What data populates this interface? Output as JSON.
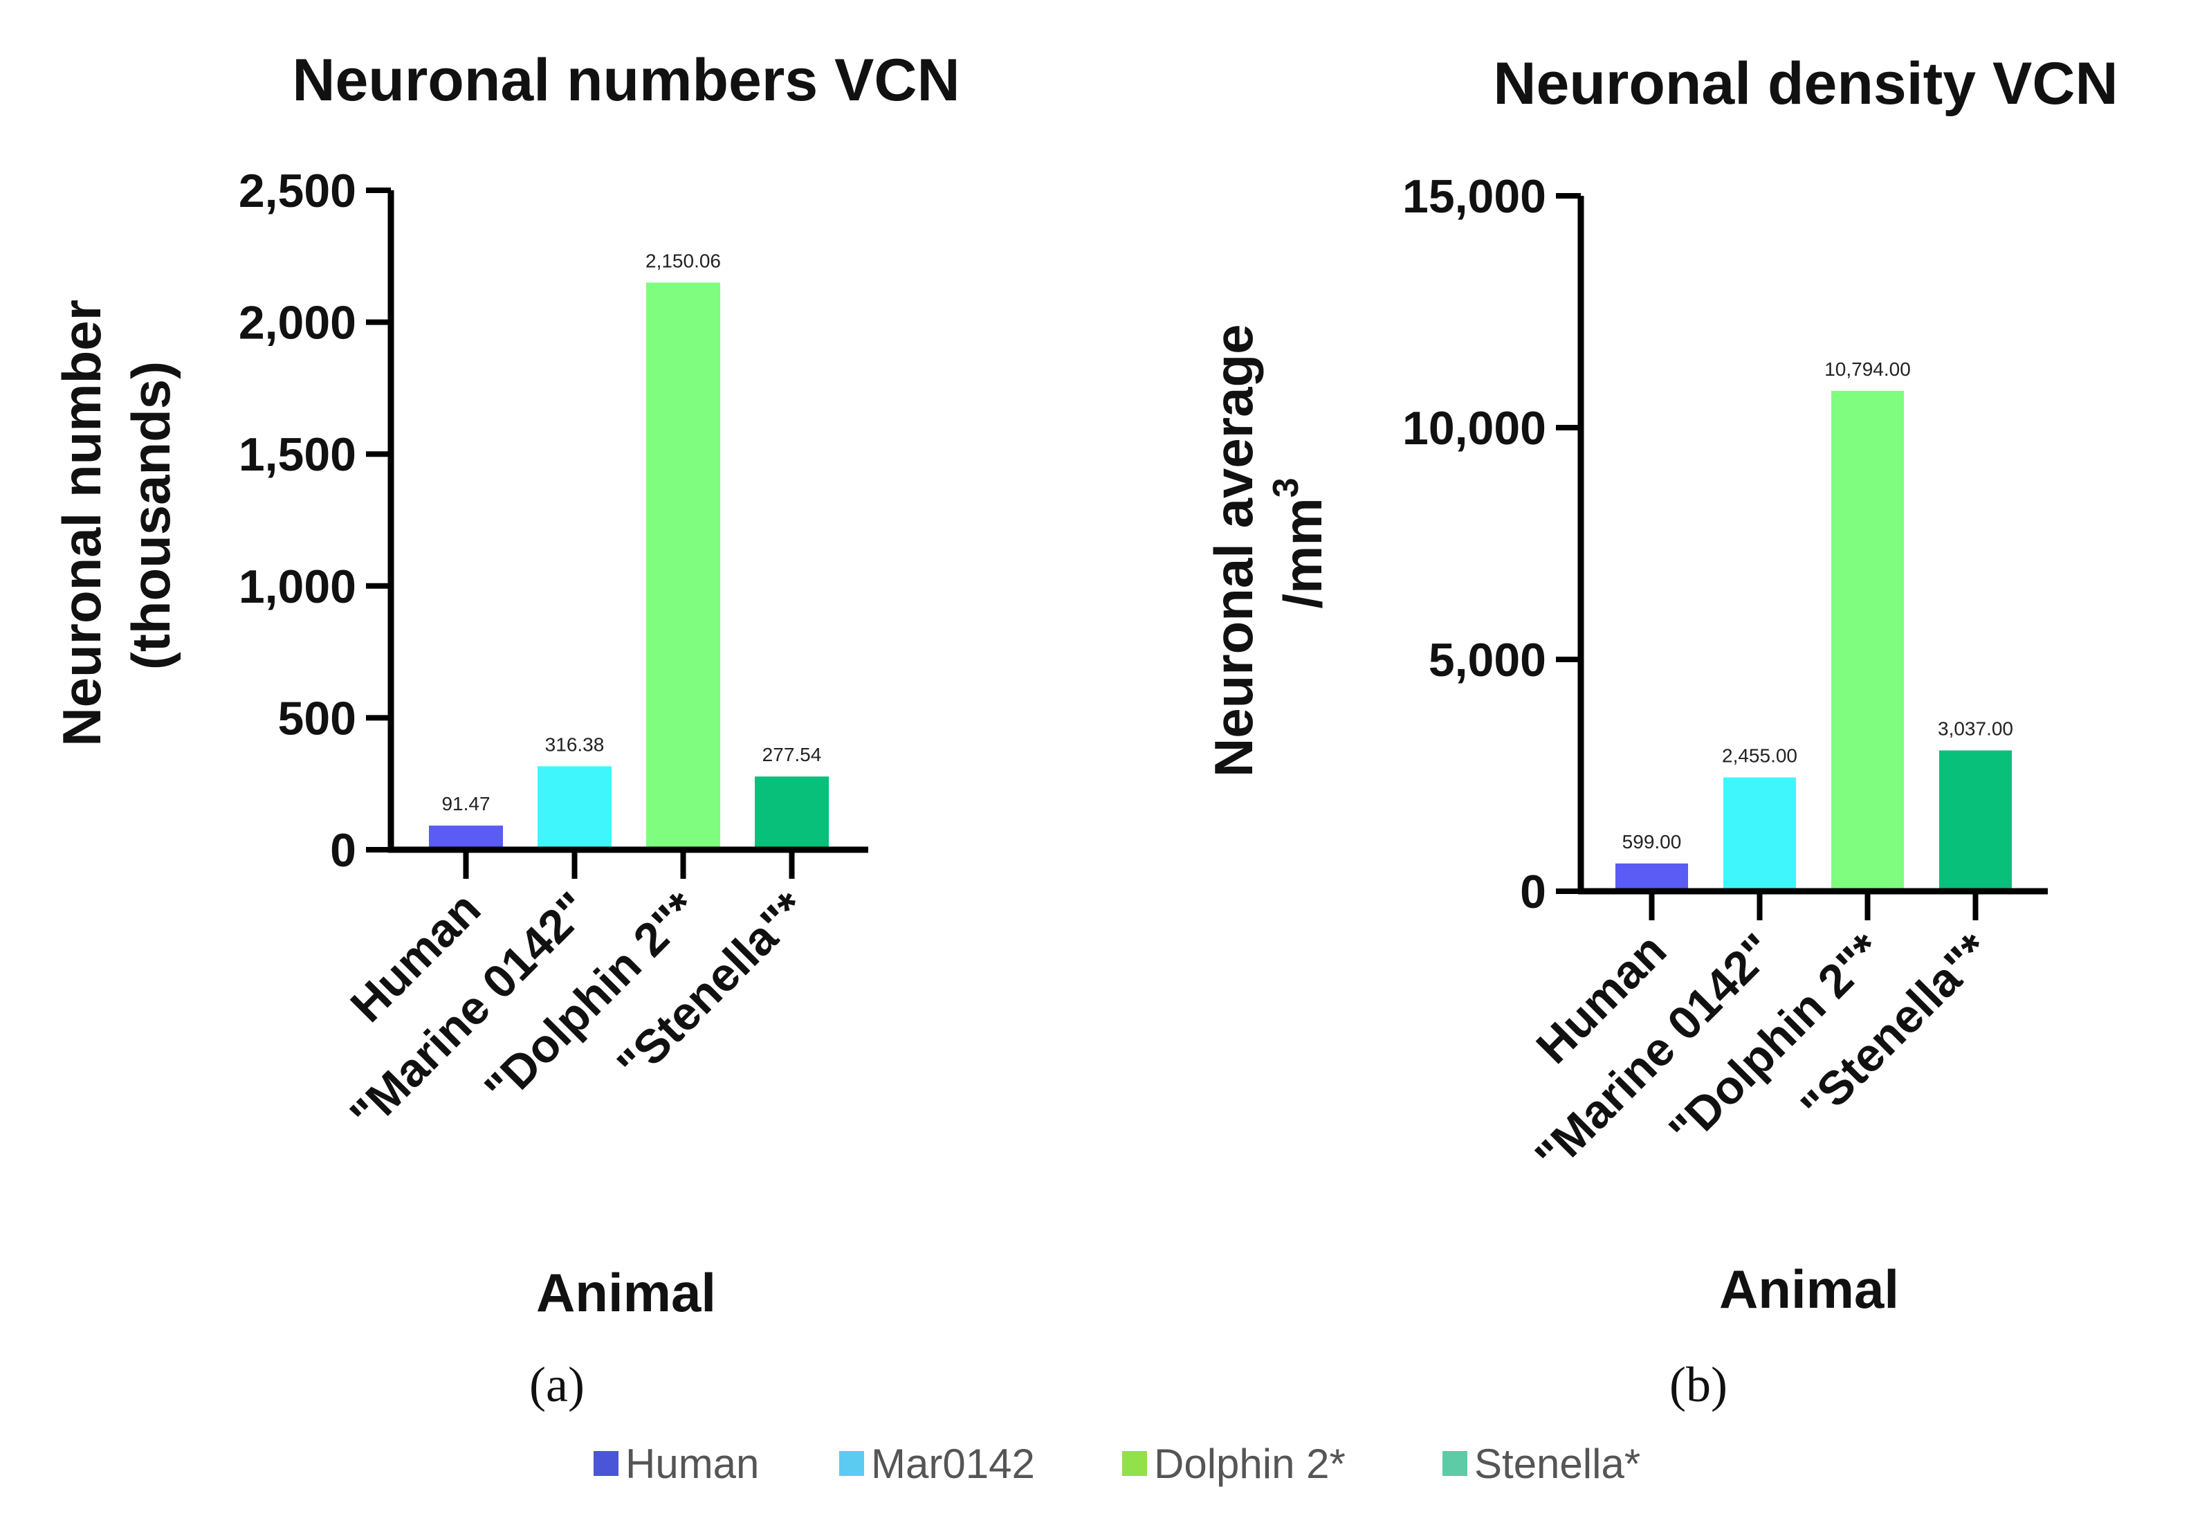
{
  "chart_data": [
    {
      "type": "bar",
      "title": "Neuronal numbers VCN",
      "ylabel_lines": [
        "Neuronal number",
        "(thousands)"
      ],
      "xlabel": "Animal",
      "panel_label": "(a)",
      "categories": [
        "Human",
        "\"Marine 0142\"",
        "\"Dolphin 2\"*",
        "\"Stenella\"*"
      ],
      "values": [
        91.47,
        316.38,
        2150.06,
        277.54
      ],
      "value_labels": [
        "91.47",
        "316.38",
        "2,150.06",
        "277.54"
      ],
      "ylim": [
        0,
        2500
      ],
      "yticks": [
        0,
        500,
        1000,
        1500,
        2000,
        2500
      ],
      "ytick_labels": [
        "0",
        "500",
        "1,000",
        "1,500",
        "2,000",
        "2,500"
      ],
      "colors": [
        "#5b5bf5",
        "#3ff6fd",
        "#7ffd7f",
        "#08c07a"
      ]
    },
    {
      "type": "bar",
      "title": "Neuronal density VCN",
      "ylabel_lines": [
        "Neuronal average",
        "/mm"
      ],
      "ylabel_superscript": "3",
      "xlabel": "Animal",
      "panel_label": "(b)",
      "categories": [
        "Human",
        "\"Marine 0142\"",
        "\"Dolphin 2\"*",
        "\"Stenella\"*"
      ],
      "values": [
        599,
        2455,
        10794,
        3037
      ],
      "value_labels": [
        "599.00",
        "2,455.00",
        "10,794.00",
        "3,037.00"
      ],
      "ylim": [
        0,
        15000
      ],
      "yticks": [
        0,
        5000,
        10000,
        15000
      ],
      "ytick_labels": [
        "0",
        "5,000",
        "10,000",
        "15,000"
      ],
      "colors": [
        "#5b5bf5",
        "#3ff6fd",
        "#7ffd7f",
        "#08c07a"
      ]
    }
  ],
  "legend": [
    {
      "label": "Human",
      "color": "#4a55d8"
    },
    {
      "label": "Mar0142",
      "color": "#5ccbf2"
    },
    {
      "label": "Dolphin 2*",
      "color": "#92e04a"
    },
    {
      "label": "Stenella*",
      "color": "#5dcca6"
    }
  ]
}
